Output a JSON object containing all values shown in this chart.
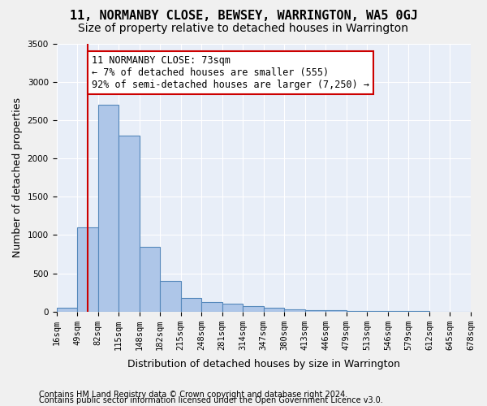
{
  "title1": "11, NORMANBY CLOSE, BEWSEY, WARRINGTON, WA5 0GJ",
  "title2": "Size of property relative to detached houses in Warrington",
  "xlabel": "Distribution of detached houses by size in Warrington",
  "ylabel": "Number of detached properties",
  "footnote1": "Contains HM Land Registry data © Crown copyright and database right 2024.",
  "footnote2": "Contains public sector information licensed under the Open Government Licence v3.0.",
  "bin_labels": [
    "16sqm",
    "49sqm",
    "82sqm",
    "115sqm",
    "148sqm",
    "182sqm",
    "215sqm",
    "248sqm",
    "281sqm",
    "314sqm",
    "347sqm",
    "380sqm",
    "413sqm",
    "446sqm",
    "479sqm",
    "513sqm",
    "546sqm",
    "579sqm",
    "612sqm",
    "645sqm",
    "678sqm"
  ],
  "bar_values": [
    50,
    1100,
    2700,
    2300,
    850,
    400,
    175,
    125,
    100,
    75,
    50,
    30,
    20,
    15,
    10,
    5,
    3,
    2,
    1,
    1
  ],
  "bar_color": "#aec6e8",
  "bar_edge_color": "#5588bb",
  "annotation_text": "11 NORMANBY CLOSE: 73sqm\n← 7% of detached houses are smaller (555)\n92% of semi-detached houses are larger (7,250) →",
  "annotation_box_color": "#ffffff",
  "annotation_border_color": "#cc0000",
  "vline_color": "#cc0000",
  "vline_x": 1.0,
  "ylim": [
    0,
    3500
  ],
  "background_color": "#e8eef8",
  "grid_color": "#ffffff",
  "title1_fontsize": 11,
  "title2_fontsize": 10,
  "xlabel_fontsize": 9,
  "ylabel_fontsize": 9,
  "tick_fontsize": 7.5,
  "annotation_fontsize": 8.5,
  "footnote_fontsize": 7
}
